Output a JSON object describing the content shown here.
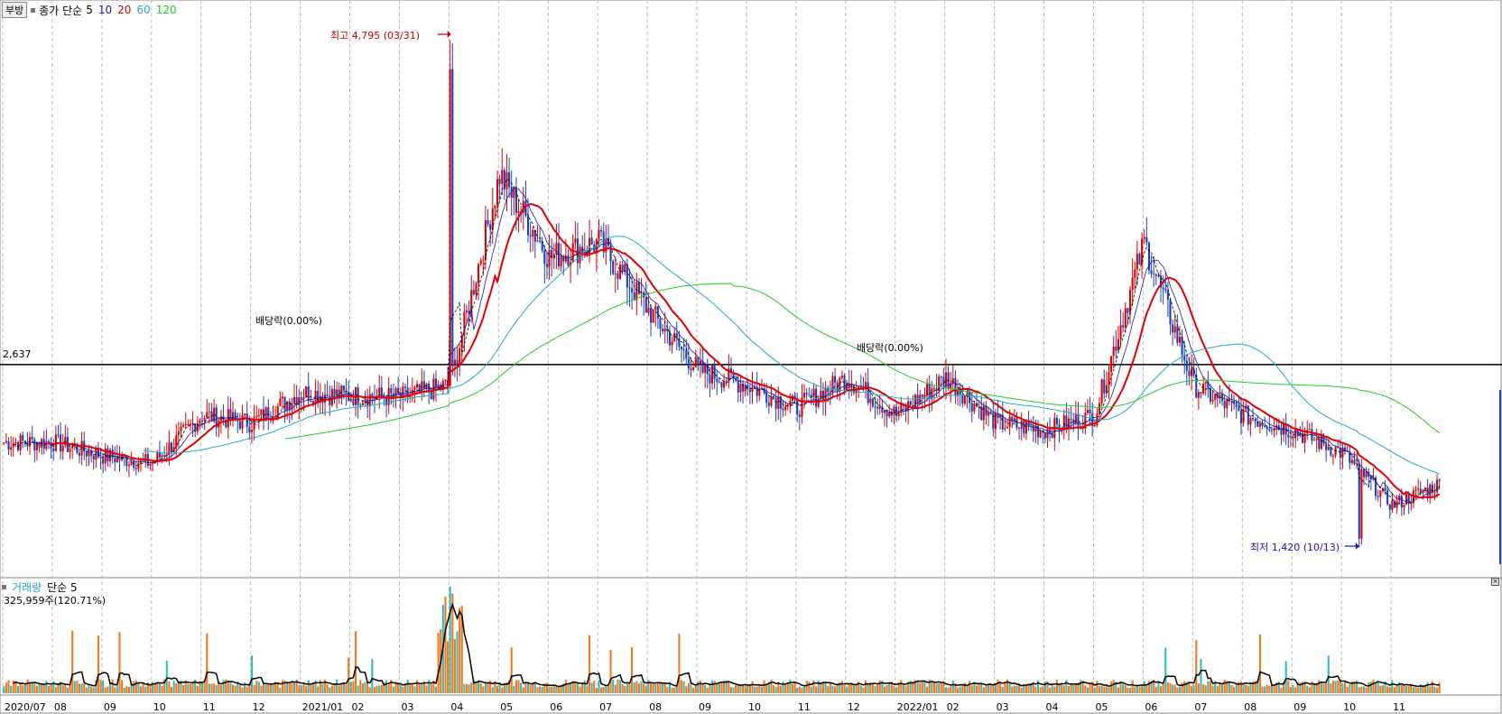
{
  "legend": {
    "tab_label": "부방",
    "price_label": "종가 단순",
    "ma_periods": [
      {
        "label": "5",
        "color": "#000000"
      },
      {
        "label": "10",
        "color": "#1a1aa8"
      },
      {
        "label": "20",
        "color": "#e00000"
      },
      {
        "label": "60",
        "color": "#22aacc"
      },
      {
        "label": "120",
        "color": "#22cc22"
      }
    ]
  },
  "reference_line": {
    "label": "2,637",
    "value": 2637
  },
  "annotations": {
    "high_label": "최고 4,795 (03/31)",
    "low_label": "최저 1,420 (10/13)",
    "dividend_1": "배당락(0.00%)",
    "dividend_2": "배당락(0.00%)"
  },
  "volume_panel": {
    "title": "거래량",
    "ma_label": "단순 5",
    "value_text": "325,959주(120.71%)"
  },
  "colors": {
    "up": "#e00000",
    "down": "#1a3fc0",
    "ma5": "#000000",
    "ma10": "#1a1aa8",
    "ma20": "#e00000",
    "ma60": "#22aacc",
    "ma120": "#22cc22",
    "volume_bar": "#f07820",
    "volume_bar_alt": "#33bbbb"
  },
  "chart_data": {
    "type": "candlestick",
    "x_tick_labels": [
      "2020/07",
      "08",
      "09",
      "10",
      "11",
      "12",
      "2021/01",
      "02",
      "03",
      "04",
      "05",
      "06",
      "07",
      "08",
      "09",
      "10",
      "11",
      "12",
      "2022/01",
      "02",
      "03",
      "04",
      "05",
      "06",
      "07",
      "08",
      "09",
      "10",
      "11"
    ],
    "y_range": [
      1250,
      5000
    ],
    "high": {
      "value": 4795,
      "date": "03/31"
    },
    "low": {
      "value": 1420,
      "date": "10/13"
    },
    "monthly_closes": [
      2120,
      2030,
      1980,
      2300,
      2250,
      2450,
      2430,
      2420,
      2500,
      3900,
      3350,
      3450,
      3000,
      2600,
      2500,
      2350,
      2550,
      2300,
      2550,
      2250,
      2200,
      2300,
      3450,
      2500,
      2300,
      2200,
      2050,
      1700,
      1850
    ]
  }
}
